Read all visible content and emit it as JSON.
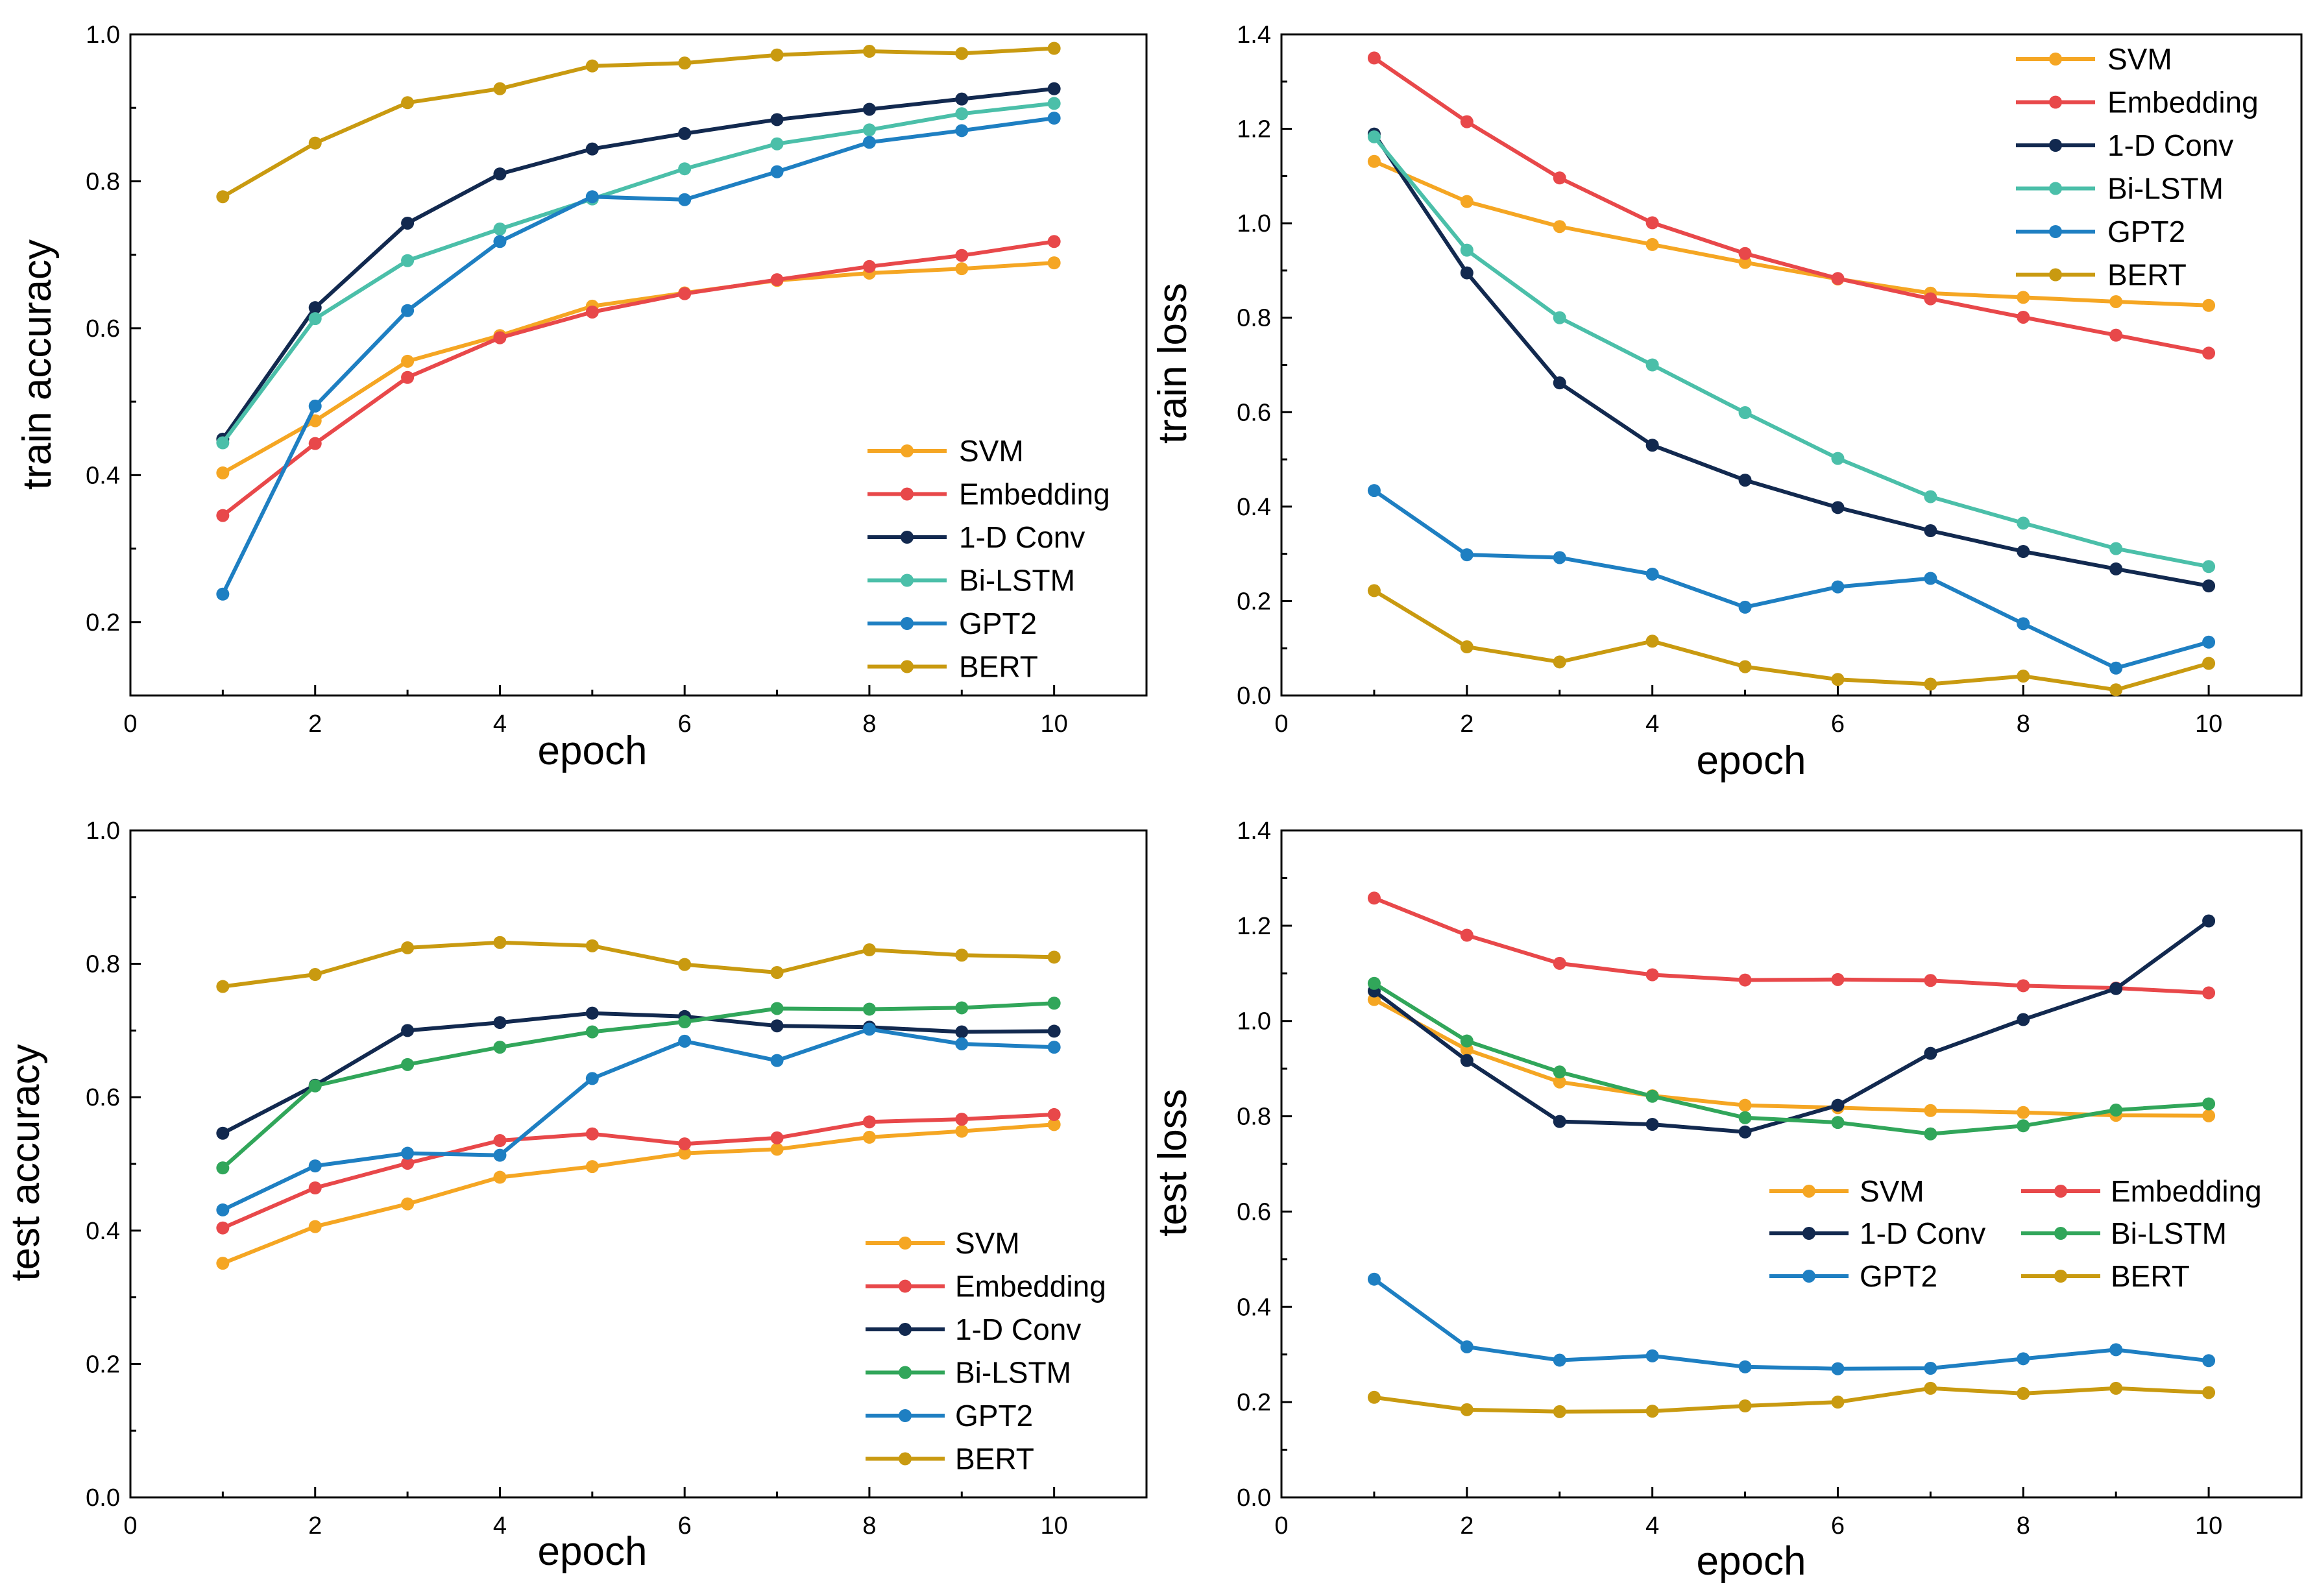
{
  "colors": {
    "SVM": "#f5a623",
    "Embedding": "#e8484a",
    "1-D Conv": "#12294f",
    "Bi-LSTM": "#4bbfa9",
    "Bi-LSTM (test)": "#31a65a",
    "GPT2": "#1e7fc2",
    "BERT": "#c99a10"
  },
  "chart_data": [
    {
      "type": "line",
      "title": "",
      "xlabel": "epoch",
      "ylabel": "train accuracy",
      "xlim": [
        0,
        11
      ],
      "ylim": [
        0.1,
        1.0
      ],
      "xticks": [
        0,
        2,
        4,
        6,
        8,
        10
      ],
      "yticks": [
        0.2,
        0.4,
        0.6,
        0.8,
        1.0
      ],
      "ytick_labels": [
        "0.2",
        "0.4",
        "0.6",
        "0.8",
        "1.0"
      ],
      "legend": "bottom-right",
      "x": [
        1,
        2,
        3,
        4,
        5,
        6,
        7,
        8,
        9,
        10
      ],
      "series": [
        {
          "name": "SVM",
          "color": "#f5a623",
          "values": [
            0.403,
            0.474,
            0.555,
            0.59,
            0.63,
            0.648,
            0.665,
            0.675,
            0.681,
            0.689
          ]
        },
        {
          "name": "Embedding",
          "color": "#e8484a",
          "values": [
            0.345,
            0.443,
            0.533,
            0.587,
            0.622,
            0.647,
            0.666,
            0.684,
            0.699,
            0.718
          ]
        },
        {
          "name": "1-D Conv",
          "color": "#12294f",
          "values": [
            0.449,
            0.628,
            0.743,
            0.81,
            0.844,
            0.865,
            0.884,
            0.898,
            0.912,
            0.926
          ]
        },
        {
          "name": "Bi-LSTM",
          "color": "#4bbfa9",
          "values": [
            0.444,
            0.613,
            0.692,
            0.735,
            0.776,
            0.817,
            0.851,
            0.87,
            0.892,
            0.906
          ]
        },
        {
          "name": "GPT2",
          "color": "#1e7fc2",
          "values": [
            0.238,
            0.494,
            0.624,
            0.718,
            0.779,
            0.775,
            0.813,
            0.853,
            0.869,
            0.886
          ]
        },
        {
          "name": "BERT",
          "color": "#c99a10",
          "values": [
            0.779,
            0.852,
            0.907,
            0.926,
            0.957,
            0.961,
            0.972,
            0.977,
            0.974,
            0.981
          ]
        }
      ]
    },
    {
      "type": "line",
      "title": "",
      "xlabel": "epoch",
      "ylabel": "train loss",
      "xlim": [
        0,
        11
      ],
      "ylim": [
        0.0,
        1.4
      ],
      "xticks": [
        0,
        2,
        4,
        6,
        8,
        10
      ],
      "yticks": [
        0.0,
        0.2,
        0.4,
        0.6,
        0.8,
        1.0,
        1.2,
        1.4
      ],
      "ytick_labels": [
        "0.0",
        "0.2",
        "0.4",
        "0.6",
        "0.8",
        "1.0",
        "1.2",
        "1.4"
      ],
      "legend": "top-right",
      "x": [
        1,
        2,
        3,
        4,
        5,
        6,
        7,
        8,
        9,
        10
      ],
      "series": [
        {
          "name": "SVM",
          "color": "#f5a623",
          "values": [
            1.131,
            1.046,
            0.993,
            0.955,
            0.917,
            0.882,
            0.852,
            0.843,
            0.834,
            0.826
          ]
        },
        {
          "name": "Embedding",
          "color": "#e8484a",
          "values": [
            1.35,
            1.215,
            1.096,
            1.001,
            0.936,
            0.883,
            0.84,
            0.801,
            0.763,
            0.725
          ]
        },
        {
          "name": "1-D Conv",
          "color": "#12294f",
          "values": [
            1.189,
            0.895,
            0.662,
            0.53,
            0.456,
            0.398,
            0.349,
            0.305,
            0.268,
            0.232
          ]
        },
        {
          "name": "Bi-LSTM",
          "color": "#4bbfa9",
          "values": [
            1.183,
            0.943,
            0.8,
            0.7,
            0.599,
            0.502,
            0.421,
            0.365,
            0.311,
            0.273
          ]
        },
        {
          "name": "GPT2",
          "color": "#1e7fc2",
          "values": [
            0.434,
            0.298,
            0.292,
            0.257,
            0.187,
            0.23,
            0.248,
            0.152,
            0.058,
            0.113
          ]
        },
        {
          "name": "BERT",
          "color": "#c99a10",
          "values": [
            0.222,
            0.103,
            0.071,
            0.115,
            0.061,
            0.034,
            0.024,
            0.041,
            0.012,
            0.068
          ]
        }
      ]
    },
    {
      "type": "line",
      "title": "",
      "xlabel": "epoch",
      "ylabel": "test accuracy",
      "xlim": [
        0,
        11
      ],
      "ylim": [
        0.0,
        1.0
      ],
      "xticks": [
        0,
        2,
        4,
        6,
        8,
        10
      ],
      "yticks": [
        0.0,
        0.2,
        0.4,
        0.6,
        0.8,
        1.0
      ],
      "ytick_labels": [
        "0.0",
        "0.2",
        "0.4",
        "0.6",
        "0.8",
        "1.0"
      ],
      "legend": "bottom-right",
      "x": [
        1,
        2,
        3,
        4,
        5,
        6,
        7,
        8,
        9,
        10
      ],
      "series": [
        {
          "name": "SVM",
          "color": "#f5a623",
          "values": [
            0.351,
            0.406,
            0.44,
            0.48,
            0.496,
            0.516,
            0.522,
            0.54,
            0.549,
            0.559
          ]
        },
        {
          "name": "Embedding",
          "color": "#e8484a",
          "values": [
            0.404,
            0.464,
            0.501,
            0.535,
            0.545,
            0.53,
            0.539,
            0.563,
            0.567,
            0.574
          ]
        },
        {
          "name": "1-D Conv",
          "color": "#12294f",
          "values": [
            0.546,
            0.618,
            0.7,
            0.712,
            0.726,
            0.721,
            0.707,
            0.705,
            0.698,
            0.699
          ]
        },
        {
          "name": "Bi-LSTM",
          "color": "#31a65a",
          "values": [
            0.494,
            0.617,
            0.649,
            0.675,
            0.698,
            0.713,
            0.733,
            0.732,
            0.734,
            0.741
          ]
        },
        {
          "name": "GPT2",
          "color": "#1e7fc2",
          "values": [
            0.431,
            0.497,
            0.516,
            0.513,
            0.628,
            0.684,
            0.655,
            0.702,
            0.68,
            0.675
          ]
        },
        {
          "name": "BERT",
          "color": "#c99a10",
          "values": [
            0.766,
            0.784,
            0.824,
            0.832,
            0.827,
            0.799,
            0.787,
            0.821,
            0.813,
            0.81
          ]
        }
      ]
    },
    {
      "type": "line",
      "title": "",
      "xlabel": "epoch",
      "ylabel": "test loss",
      "xlim": [
        0,
        11
      ],
      "ylim": [
        0.0,
        1.4
      ],
      "xticks": [
        0,
        2,
        4,
        6,
        8,
        10
      ],
      "yticks": [
        0.0,
        0.2,
        0.4,
        0.6,
        0.8,
        1.0,
        1.2,
        1.4
      ],
      "ytick_labels": [
        "0.0",
        "0.2",
        "0.4",
        "0.6",
        "0.8",
        "1.0",
        "1.2",
        "1.4"
      ],
      "legend": "center-right, two columns",
      "x": [
        1,
        2,
        3,
        4,
        5,
        6,
        7,
        8,
        9,
        10
      ],
      "series": [
        {
          "name": "SVM",
          "color": "#f5a623",
          "values": [
            1.045,
            0.94,
            0.872,
            0.843,
            0.823,
            0.818,
            0.812,
            0.808,
            0.802,
            0.801
          ]
        },
        {
          "name": "Embedding",
          "color": "#e8484a",
          "values": [
            1.258,
            1.18,
            1.121,
            1.097,
            1.086,
            1.087,
            1.085,
            1.074,
            1.069,
            1.059
          ]
        },
        {
          "name": "1-D Conv",
          "color": "#12294f",
          "values": [
            1.063,
            0.917,
            0.789,
            0.783,
            0.767,
            0.823,
            0.932,
            1.003,
            1.068,
            1.21
          ]
        },
        {
          "name": "Bi-LSTM",
          "color": "#31a65a",
          "values": [
            1.079,
            0.958,
            0.893,
            0.842,
            0.797,
            0.787,
            0.763,
            0.78,
            0.813,
            0.826
          ]
        },
        {
          "name": "GPT2",
          "color": "#1e7fc2",
          "values": [
            0.458,
            0.316,
            0.288,
            0.297,
            0.274,
            0.27,
            0.271,
            0.291,
            0.31,
            0.287
          ]
        },
        {
          "name": "BERT",
          "color": "#c99a10",
          "values": [
            0.21,
            0.184,
            0.18,
            0.181,
            0.192,
            0.2,
            0.229,
            0.218,
            0.229,
            0.22
          ]
        }
      ]
    }
  ]
}
